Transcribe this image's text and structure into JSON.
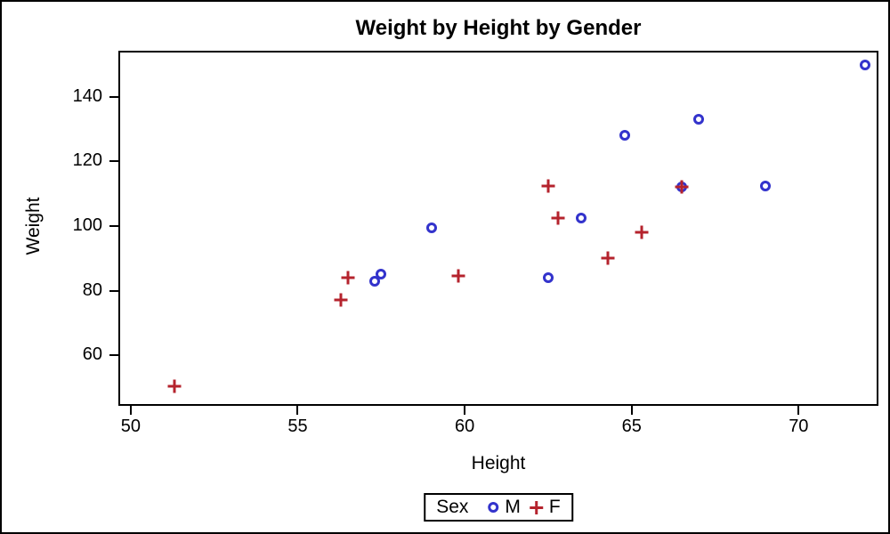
{
  "colors": {
    "male": "#3333CC",
    "female": "#B5232D",
    "frame": "#000000",
    "background": "#FFFFFF"
  },
  "chart_data": {
    "type": "scatter",
    "title": "Weight by Height by Gender",
    "xlabel": "Height",
    "ylabel": "Weight",
    "xlim": [
      49.63,
      72.39
    ],
    "ylim": [
      44.3,
      154.3
    ],
    "xticks": [
      50,
      55,
      60,
      65,
      70
    ],
    "yticks": [
      60,
      80,
      100,
      120,
      140
    ],
    "grid": false,
    "legend": {
      "title": "Sex",
      "position": "bottom-center",
      "entries": [
        {
          "label": "M",
          "marker": "circle",
          "color": "#3333CC"
        },
        {
          "label": "F",
          "marker": "plus",
          "color": "#B5232D"
        }
      ]
    },
    "series": [
      {
        "name": "M",
        "marker": "circle",
        "color": "#3333CC",
        "points": [
          [
            57.3,
            83.0
          ],
          [
            57.5,
            85.0
          ],
          [
            59.0,
            99.5
          ],
          [
            62.5,
            84.0
          ],
          [
            63.5,
            102.5
          ],
          [
            64.8,
            128.0
          ],
          [
            66.5,
            112.0
          ],
          [
            67.0,
            133.0
          ],
          [
            69.0,
            112.5
          ],
          [
            72.0,
            150.0
          ]
        ]
      },
      {
        "name": "F",
        "marker": "plus",
        "color": "#B5232D",
        "points": [
          [
            51.3,
            50.5
          ],
          [
            56.3,
            77.0
          ],
          [
            56.5,
            84.0
          ],
          [
            59.8,
            84.5
          ],
          [
            62.5,
            112.5
          ],
          [
            62.8,
            102.5
          ],
          [
            64.3,
            90.0
          ],
          [
            65.3,
            98.0
          ],
          [
            66.5,
            112.0
          ]
        ]
      }
    ]
  }
}
